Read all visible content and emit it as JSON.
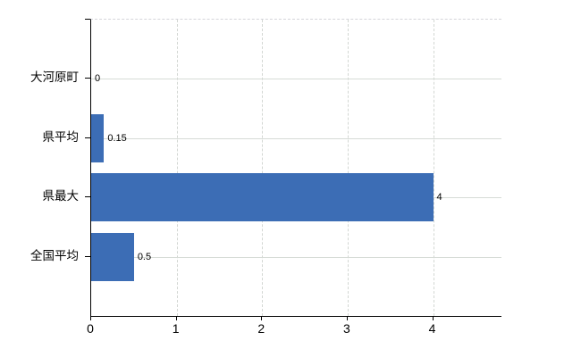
{
  "chart_data": {
    "type": "bar",
    "orientation": "horizontal",
    "title": "",
    "xlabel": "",
    "ylabel": "",
    "categories": [
      "大河原町",
      "県平均",
      "県最大",
      "全国平均"
    ],
    "values": [
      0,
      0.15,
      4,
      0.5
    ],
    "data_labels": [
      "0",
      "0.15",
      "4",
      "0.5"
    ],
    "x_ticks": [
      "0",
      "1",
      "2",
      "3",
      "4"
    ],
    "x_tick_values": [
      0,
      1,
      2,
      3,
      4
    ],
    "xlim": [
      0,
      4.8
    ],
    "grid": true,
    "legend": false,
    "colors": {
      "bar": "#3c6db5",
      "h_gridline": "#d6dbd6",
      "v_gridline": "#d3d7d3",
      "axis": "#000000",
      "text": "#000000"
    }
  }
}
